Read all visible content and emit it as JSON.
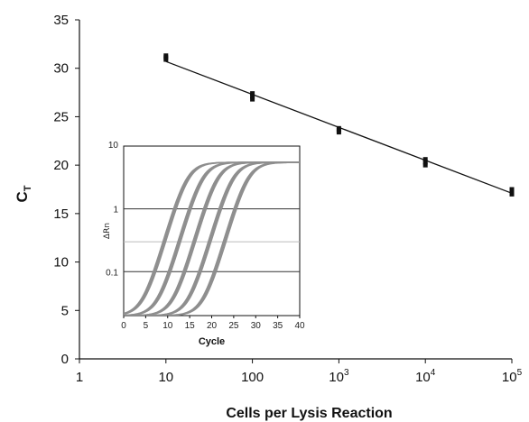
{
  "chart_data": [
    {
      "type": "scatter",
      "title": "",
      "xlabel": "Cells per Lysis Reaction",
      "ylabel": "C",
      "ylabel_subscript": "T",
      "x_scale": "log10",
      "xlim": [
        1,
        100000
      ],
      "ylim": [
        0,
        35
      ],
      "x_ticks": [
        1,
        10,
        100,
        1000,
        10000,
        100000
      ],
      "x_tick_labels": [
        {
          "base": "1",
          "sup": ""
        },
        {
          "base": "10",
          "sup": ""
        },
        {
          "base": "100",
          "sup": ""
        },
        {
          "base": "10",
          "sup": "3"
        },
        {
          "base": "10",
          "sup": "4"
        },
        {
          "base": "10",
          "sup": "5"
        }
      ],
      "y_ticks": [
        0,
        5,
        10,
        15,
        20,
        25,
        30,
        35
      ],
      "grid": false,
      "legend": "none",
      "point_color": "#111111",
      "line_color": "#111111",
      "series": [
        {
          "points": [
            {
              "x": 10,
              "y": 31.3
            },
            {
              "x": 10,
              "y": 31.1
            },
            {
              "x": 10,
              "y": 30.9
            },
            {
              "x": 100,
              "y": 27.4
            },
            {
              "x": 100,
              "y": 27.1
            },
            {
              "x": 100,
              "y": 26.8
            },
            {
              "x": 1000,
              "y": 23.8
            },
            {
              "x": 1000,
              "y": 23.6
            },
            {
              "x": 1000,
              "y": 23.4
            },
            {
              "x": 10000,
              "y": 20.6
            },
            {
              "x": 10000,
              "y": 20.3
            },
            {
              "x": 10000,
              "y": 20.0
            },
            {
              "x": 100000,
              "y": 17.5
            },
            {
              "x": 100000,
              "y": 17.2
            },
            {
              "x": 100000,
              "y": 17.0
            }
          ]
        }
      ],
      "fit_line": {
        "x": [
          10,
          100000
        ],
        "y": [
          30.7,
          17.1
        ]
      }
    },
    {
      "type": "line",
      "title": "",
      "xlabel": "Cycle",
      "ylabel": "ΔRn",
      "y_scale": "log10",
      "xlim": [
        0,
        40
      ],
      "ylim": [
        0.02,
        10
      ],
      "x_ticks": [
        0,
        5,
        10,
        15,
        20,
        25,
        30,
        35,
        40
      ],
      "y_ticks": [
        0.1,
        1,
        10
      ],
      "y_tick_labels": [
        "0.1",
        "1",
        "10"
      ],
      "reference_lines": [
        {
          "y": 1,
          "color": "#333333"
        },
        {
          "y": 0.3,
          "color": "#bbbbbb"
        },
        {
          "y": 0.1,
          "color": "#333333"
        }
      ],
      "curve_color": "#8e8e8e",
      "plateau": 5.5,
      "curve_groups": [
        {
          "threshold_cycle": 16.9,
          "replicate_offsets": [
            -0.3,
            0,
            0.3
          ]
        },
        {
          "threshold_cycle": 20.3,
          "replicate_offsets": [
            -0.3,
            0,
            0.3
          ]
        },
        {
          "threshold_cycle": 23.7,
          "replicate_offsets": [
            -0.3,
            0,
            0.3
          ]
        },
        {
          "threshold_cycle": 27.2,
          "replicate_offsets": [
            -0.3,
            0,
            0.3
          ]
        },
        {
          "threshold_cycle": 30.6,
          "replicate_offsets": [
            -0.3,
            0,
            0.3
          ]
        }
      ]
    }
  ]
}
